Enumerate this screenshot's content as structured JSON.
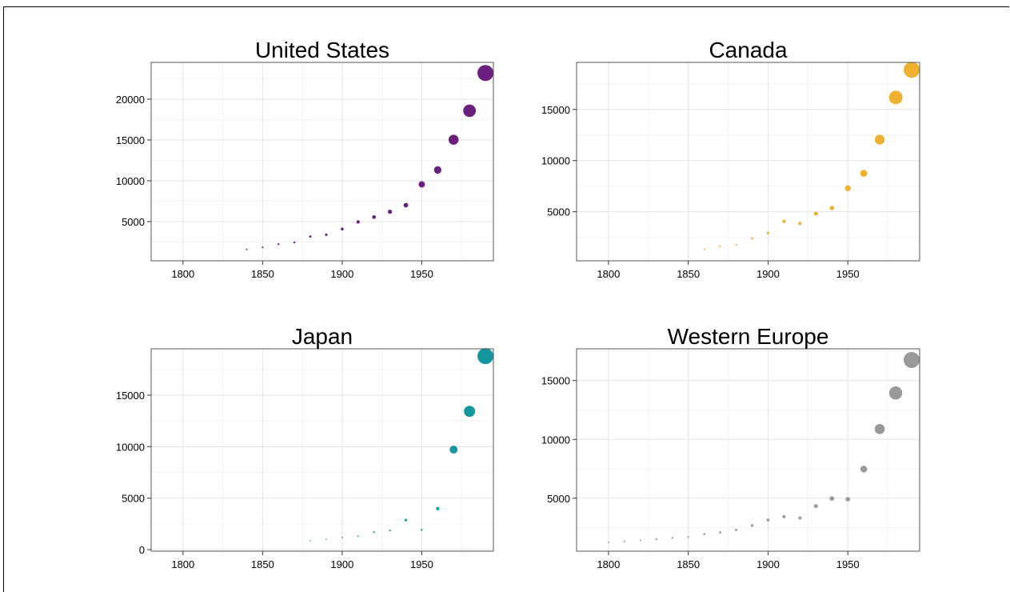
{
  "chart_data": [
    {
      "type": "scatter",
      "title": "United States",
      "color": "#6a1f7e",
      "xlim": [
        1780,
        1995
      ],
      "ylim": [
        200,
        24500
      ],
      "xticks": [
        1800,
        1850,
        1900,
        1950
      ],
      "yticks": [
        5000,
        10000,
        15000,
        20000
      ],
      "grid": true,
      "points": [
        {
          "x": 1840,
          "y": 1588
        },
        {
          "x": 1850,
          "y": 1849
        },
        {
          "x": 1860,
          "y": 2241
        },
        {
          "x": 1870,
          "y": 2445
        },
        {
          "x": 1880,
          "y": 3184
        },
        {
          "x": 1890,
          "y": 3392
        },
        {
          "x": 1900,
          "y": 4091
        },
        {
          "x": 1910,
          "y": 4964
        },
        {
          "x": 1920,
          "y": 5552
        },
        {
          "x": 1930,
          "y": 6213
        },
        {
          "x": 1940,
          "y": 7010
        },
        {
          "x": 1950,
          "y": 9561
        },
        {
          "x": 1960,
          "y": 11328
        },
        {
          "x": 1970,
          "y": 15030
        },
        {
          "x": 1980,
          "y": 18577
        },
        {
          "x": 1990,
          "y": 23201
        }
      ]
    },
    {
      "type": "scatter",
      "title": "Canada",
      "color": "#f0b030",
      "xlim": [
        1780,
        1995
      ],
      "ylim": [
        200,
        19600
      ],
      "xticks": [
        1800,
        1850,
        1900,
        1950
      ],
      "yticks": [
        5000,
        10000,
        15000
      ],
      "grid": true,
      "points": [
        {
          "x": 1860,
          "y": 1330
        },
        {
          "x": 1870,
          "y": 1620
        },
        {
          "x": 1880,
          "y": 1760
        },
        {
          "x": 1890,
          "y": 2380
        },
        {
          "x": 1900,
          "y": 2911
        },
        {
          "x": 1910,
          "y": 4064
        },
        {
          "x": 1920,
          "y": 3861
        },
        {
          "x": 1930,
          "y": 4811
        },
        {
          "x": 1940,
          "y": 5368
        },
        {
          "x": 1950,
          "y": 7291
        },
        {
          "x": 1960,
          "y": 8753
        },
        {
          "x": 1970,
          "y": 12050
        },
        {
          "x": 1980,
          "y": 16176
        },
        {
          "x": 1990,
          "y": 18872
        }
      ]
    },
    {
      "type": "scatter",
      "title": "Japan",
      "color": "#14969e",
      "xlim": [
        1780,
        1995
      ],
      "ylim": [
        -150,
        19500
      ],
      "xticks": [
        1800,
        1850,
        1900,
        1950
      ],
      "yticks": [
        0,
        5000,
        10000,
        15000
      ],
      "grid": true,
      "points": [
        {
          "x": 1880,
          "y": 863
        },
        {
          "x": 1890,
          "y": 1012
        },
        {
          "x": 1900,
          "y": 1180
        },
        {
          "x": 1910,
          "y": 1304
        },
        {
          "x": 1920,
          "y": 1696
        },
        {
          "x": 1930,
          "y": 1850
        },
        {
          "x": 1940,
          "y": 2874
        },
        {
          "x": 1950,
          "y": 1921
        },
        {
          "x": 1960,
          "y": 3986
        },
        {
          "x": 1970,
          "y": 9714
        },
        {
          "x": 1980,
          "y": 13428
        },
        {
          "x": 1990,
          "y": 18789
        }
      ]
    },
    {
      "type": "scatter",
      "title": "Western Europe",
      "color": "#999999",
      "xlim": [
        1780,
        1995
      ],
      "ylim": [
        500,
        17700
      ],
      "xticks": [
        1800,
        1850,
        1900,
        1950
      ],
      "yticks": [
        5000,
        10000,
        15000
      ],
      "grid": true,
      "points": [
        {
          "x": 1800,
          "y": 1260
        },
        {
          "x": 1810,
          "y": 1330
        },
        {
          "x": 1820,
          "y": 1420
        },
        {
          "x": 1830,
          "y": 1530
        },
        {
          "x": 1840,
          "y": 1640
        },
        {
          "x": 1850,
          "y": 1690
        },
        {
          "x": 1860,
          "y": 1960
        },
        {
          "x": 1870,
          "y": 2100
        },
        {
          "x": 1880,
          "y": 2310
        },
        {
          "x": 1890,
          "y": 2680
        },
        {
          "x": 1900,
          "y": 3150
        },
        {
          "x": 1910,
          "y": 3430
        },
        {
          "x": 1920,
          "y": 3330
        },
        {
          "x": 1930,
          "y": 4330
        },
        {
          "x": 1940,
          "y": 4980
        },
        {
          "x": 1950,
          "y": 4920
        },
        {
          "x": 1960,
          "y": 7480
        },
        {
          "x": 1970,
          "y": 10880
        },
        {
          "x": 1980,
          "y": 13950
        },
        {
          "x": 1990,
          "y": 16750
        }
      ]
    }
  ]
}
